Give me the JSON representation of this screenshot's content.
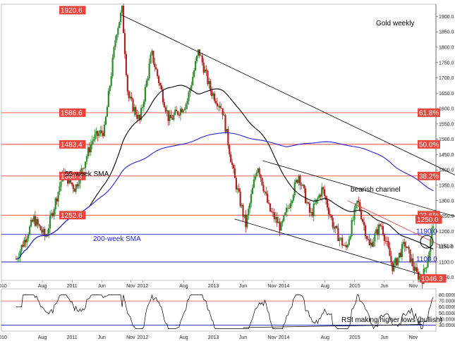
{
  "chart_data": {
    "type": "candlestick",
    "title": "Gold weekly",
    "price_axis": {
      "ylim": [
        1040,
        1940
      ],
      "ticks": [
        "1900.0",
        "1850.0",
        "1800.0",
        "1750.0",
        "1700.0",
        "1650.0",
        "1600.0",
        "1550.0",
        "1500.0",
        "1450.0",
        "1400.0",
        "1350.0",
        "1300.0",
        "1250.0",
        "1200.0",
        "1150.0",
        "1100.0",
        "1050.0"
      ]
    },
    "x_axis_labels": [
      "2010",
      "Aug",
      "2011",
      "Jun",
      "Nov",
      "2012",
      "Aug",
      "2013",
      "Jun",
      "Nov",
      "2014",
      "Aug",
      "2015",
      "Jun",
      "Nov"
    ],
    "price_path": [
      [
        "2010-03",
        1110
      ],
      [
        "2010-06",
        1240
      ],
      [
        "2010-08",
        1180
      ],
      [
        "2010-11",
        1390
      ],
      [
        "2011-01",
        1340
      ],
      [
        "2011-04",
        1500
      ],
      [
        "2011-06",
        1530
      ],
      [
        "2011-08",
        1850
      ],
      [
        "2011-09",
        1920.6
      ],
      [
        "2011-10",
        1640
      ],
      [
        "2011-12",
        1560
      ],
      [
        "2012-02",
        1780
      ],
      [
        "2012-05",
        1560
      ],
      [
        "2012-08",
        1620
      ],
      [
        "2012-10",
        1790
      ],
      [
        "2012-12",
        1660
      ],
      [
        "2013-02",
        1600
      ],
      [
        "2013-04",
        1380
      ],
      [
        "2013-06",
        1220
      ],
      [
        "2013-08",
        1420
      ],
      [
        "2013-10",
        1270
      ],
      [
        "2013-12",
        1210
      ],
      [
        "2014-03",
        1385
      ],
      [
        "2014-05",
        1250
      ],
      [
        "2014-07",
        1340
      ],
      [
        "2014-09",
        1210
      ],
      [
        "2014-11",
        1140
      ],
      [
        "2015-01",
        1300
      ],
      [
        "2015-03",
        1150
      ],
      [
        "2015-05",
        1225
      ],
      [
        "2015-07",
        1080
      ],
      [
        "2015-09",
        1160
      ],
      [
        "2015-11",
        1060
      ],
      [
        "2015-12",
        1046.3
      ],
      [
        "2016-01",
        1120
      ],
      [
        "2016-02",
        1250
      ]
    ],
    "levels": [
      {
        "label": "1920.6",
        "value": 1920.6,
        "line": false,
        "color": "#e8453c"
      },
      {
        "label": "1586.6",
        "value": 1586.6,
        "line": true,
        "color": "#e8453c"
      },
      {
        "label": "1483.4",
        "value": 1483.4,
        "line": true,
        "color": "#e8453c"
      },
      {
        "label": "1380.3",
        "value": 1380.3,
        "line": true,
        "color": "#e8453c"
      },
      {
        "label": "1252.6",
        "value": 1252.6,
        "line": true,
        "color": "#e8453c"
      },
      {
        "label": "1046.3",
        "value": 1046.3,
        "line": false,
        "color": "#e8453c"
      }
    ],
    "fib_levels": [
      {
        "label": "61.8%",
        "value": 1586.6
      },
      {
        "label": "50.0%",
        "value": 1483.4
      },
      {
        "label": "38.2%",
        "value": 1380.3
      },
      {
        "label": "23.6%",
        "value": 1252.6
      }
    ],
    "blue_levels": [
      {
        "label": "1190.0",
        "value": 1190.0
      },
      {
        "label": "1100.0",
        "value": 1100.0
      }
    ],
    "resistance_label": {
      "label": "1250.0",
      "value": 1250.0
    },
    "current_price": {
      "label": "1151.3",
      "value": 1151.3
    },
    "sma_labels": {
      "sma55": "55-week SMA",
      "sma200": "200-week SMA"
    },
    "channel_label": "bearish channel",
    "rsi": {
      "ylim": [
        20,
        90
      ],
      "ticks": [
        "80.0000",
        "70.0000",
        "60.0000",
        "50.0000",
        "40.0000",
        "30.0000"
      ],
      "overbought": 70,
      "oversold": 30,
      "annotation": "RSI making higher lows (bullish)"
    },
    "colors": {
      "up": "#2e8b2e",
      "down": "#b22222",
      "fib": "#e8453c",
      "sma55": "#000000",
      "sma200": "#2323d6",
      "blue_level": "#1c1cc8"
    }
  }
}
